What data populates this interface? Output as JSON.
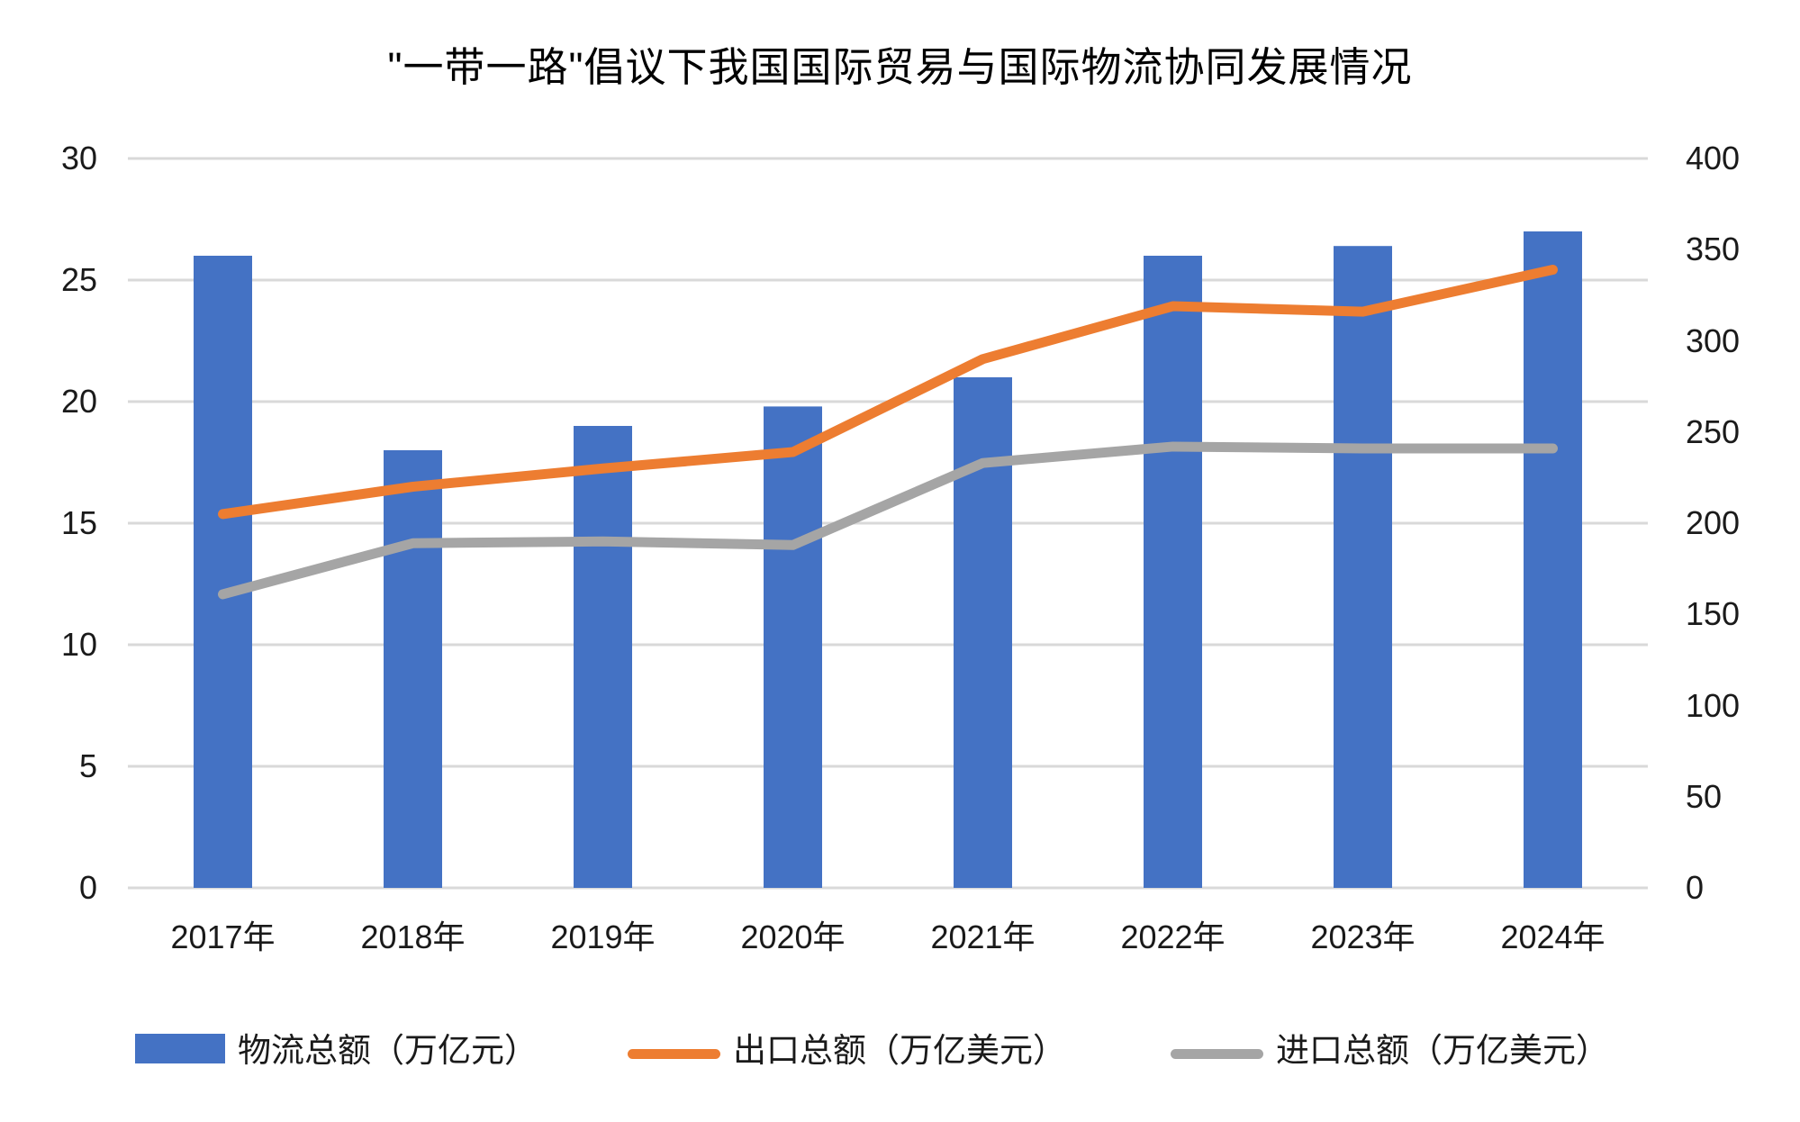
{
  "title": "\"一带一路\"倡议下我国国际贸易与国际物流协同发展情况",
  "chart_data": {
    "type": "combo-bar-line",
    "title": "\"一带一路\"倡议下我国国际贸易与国际物流协同发展情况",
    "categories": [
      "2017年",
      "2018年",
      "2019年",
      "2020年",
      "2021年",
      "2022年",
      "2023年",
      "2024年"
    ],
    "series": [
      {
        "name": "物流总额（万亿元）",
        "type": "bar",
        "axis": "left",
        "color": "#4472C4",
        "values": [
          26,
          18,
          19,
          19.8,
          21,
          26,
          26.4,
          27
        ]
      },
      {
        "name": "出口总额（万亿美元）",
        "type": "line",
        "axis": "right",
        "color": "#ED7D31",
        "values": [
          205,
          220,
          230,
          239,
          290,
          319,
          316,
          339
        ]
      },
      {
        "name": "进口总额（万亿美元）",
        "type": "line",
        "axis": "right",
        "color": "#A5A5A5",
        "values": [
          161,
          189,
          190,
          188,
          233,
          242,
          241,
          241
        ]
      }
    ],
    "left_axis": {
      "min": 0,
      "max": 30,
      "step": 5,
      "ticks": [
        "0",
        "5",
        "10",
        "15",
        "20",
        "25",
        "30"
      ]
    },
    "right_axis": {
      "min": 0,
      "max": 400,
      "step": 50,
      "ticks": [
        "0",
        "50",
        "100",
        "150",
        "200",
        "250",
        "300",
        "350",
        "400"
      ]
    },
    "grid": "horizontal",
    "legend_position": "bottom"
  },
  "colors": {
    "bar_blue": "#4472C4",
    "line_orange": "#ED7D31",
    "line_gray": "#A5A5A5",
    "gridline": "#D9D9D9",
    "text": "#1a1a1a",
    "background": "#FFFFFF"
  }
}
